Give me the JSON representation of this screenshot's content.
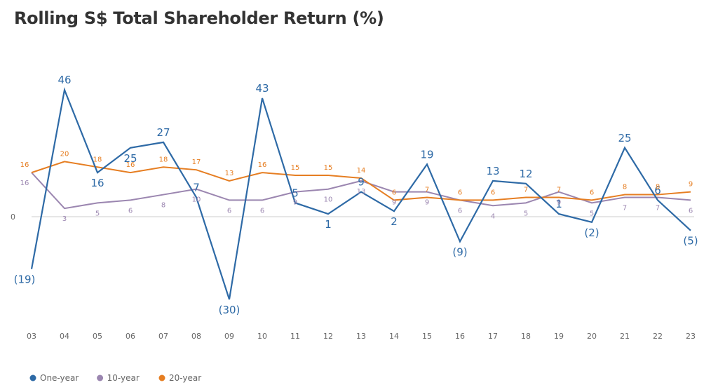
{
  "chart_data": {
    "type": "line",
    "title": "Rolling S$ Total Shareholder Return (%)",
    "xlabel": "",
    "ylabel": "",
    "zero_label": "0",
    "x": [
      "03",
      "04",
      "05",
      "06",
      "07",
      "08",
      "09",
      "10",
      "11",
      "12",
      "13",
      "14",
      "15",
      "16",
      "17",
      "18",
      "19",
      "20",
      "21",
      "22",
      "23"
    ],
    "ylim": [
      -40,
      48
    ],
    "grid": false,
    "legend_position": "bottom-left",
    "series": [
      {
        "name": "One-year",
        "color": "#2e6aa6",
        "values": [
          -19,
          46,
          16,
          25,
          27,
          7,
          -30,
          43,
          5,
          1,
          9,
          2,
          19,
          -9,
          13,
          12,
          1,
          -2,
          25,
          6,
          -5
        ],
        "labels": [
          "(19)",
          "46",
          "16",
          "25",
          "27",
          "7",
          "(30)",
          "43",
          "5",
          "1",
          "9",
          "2",
          "19",
          "(9)",
          "13",
          "12",
          "1",
          "(2)",
          "25",
          "6",
          "(5)"
        ]
      },
      {
        "name": "10-year",
        "color": "#9b86b0",
        "values": [
          16,
          3,
          5,
          6,
          8,
          10,
          6,
          6,
          9,
          10,
          13,
          9,
          9,
          6,
          4,
          5,
          9,
          5,
          7,
          7,
          6
        ],
        "labels": [
          "16",
          "3",
          "5",
          "6",
          "8",
          "10",
          "6",
          "6",
          "9",
          "10",
          "13",
          "9",
          "9",
          "6",
          "4",
          "5",
          "9",
          "5",
          "7",
          "7",
          "6"
        ]
      },
      {
        "name": "20-year",
        "color": "#e67e22",
        "values": [
          16,
          20,
          18,
          16,
          18,
          17,
          13,
          16,
          15,
          15,
          14,
          6,
          7,
          6,
          6,
          7,
          7,
          6,
          8,
          8,
          9
        ],
        "labels": [
          "16",
          "20",
          "18",
          "16",
          "18",
          "17",
          "13",
          "16",
          "15",
          "15",
          "14",
          "6",
          "7",
          "6",
          "6",
          "7",
          "7",
          "6",
          "8",
          "8",
          "9"
        ]
      }
    ]
  }
}
